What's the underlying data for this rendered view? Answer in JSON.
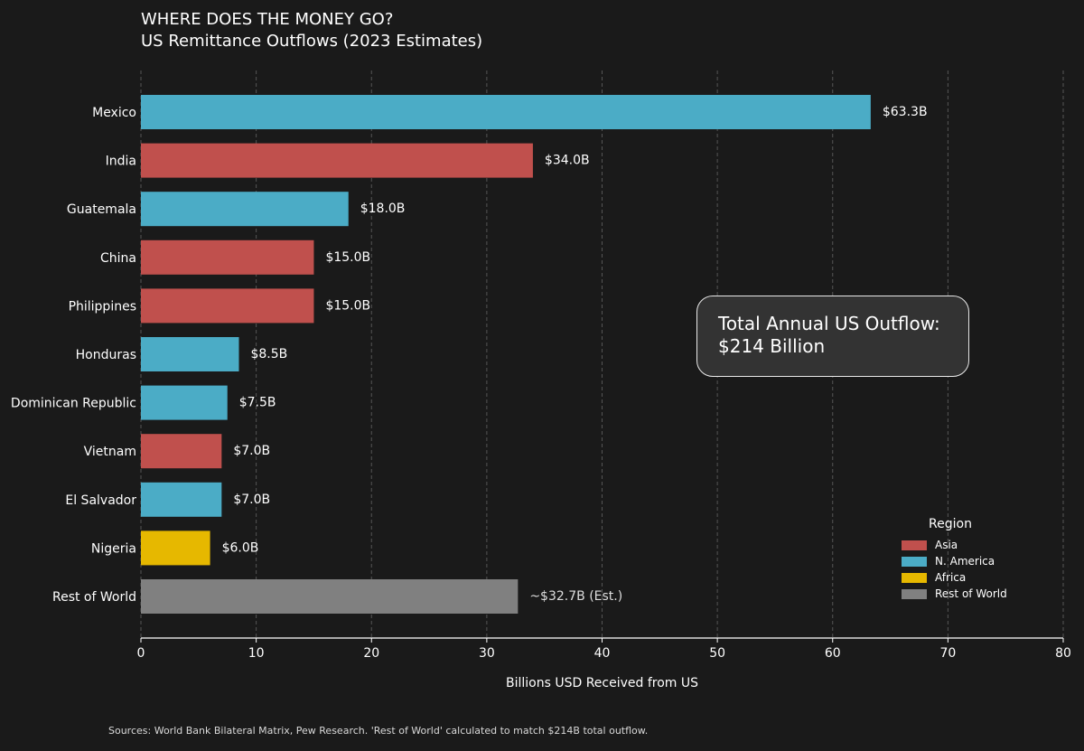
{
  "title": {
    "line1": "WHERE DOES THE MONEY GO?",
    "line2": "US Remittance Outflows (2023 Estimates)"
  },
  "annotation": {
    "line1": "Total Annual US Outflow:",
    "line2": "$214 Billion"
  },
  "source": "Sources: World Bank Bilateral Matrix, Pew Research. 'Rest of World' calculated to match $214B total outflow.",
  "colors": {
    "Asia": "#c0504d",
    "N. America": "#4bacc6",
    "Africa": "#e6b800",
    "Rest of World": "#808080",
    "background": "#1a1a1a",
    "grid": "#555555"
  },
  "legend": {
    "title": "Region",
    "items": [
      {
        "label": "Asia",
        "color": "#c0504d"
      },
      {
        "label": "N. America",
        "color": "#4bacc6"
      },
      {
        "label": "Africa",
        "color": "#e6b800"
      },
      {
        "label": "Rest of World",
        "color": "#808080"
      }
    ]
  },
  "chart_data": {
    "type": "bar",
    "orientation": "horizontal",
    "title": "US Remittance Outflows (2023 Estimates)",
    "xlabel": "Billions USD Received from US",
    "ylabel": "",
    "xlim": [
      0,
      80
    ],
    "xticks": [
      0,
      10,
      20,
      30,
      40,
      50,
      60,
      70,
      80
    ],
    "grid": "vertical dashed",
    "categories": [
      "Mexico",
      "India",
      "Guatemala",
      "China",
      "Philippines",
      "Honduras",
      "Dominican Republic",
      "Vietnam",
      "El Salvador",
      "Nigeria",
      "Rest of World"
    ],
    "values": [
      63.3,
      34.0,
      18.0,
      15.0,
      15.0,
      8.5,
      7.5,
      7.0,
      7.0,
      6.0,
      32.7
    ],
    "regions": [
      "N. America",
      "Asia",
      "N. America",
      "Asia",
      "Asia",
      "N. America",
      "N. America",
      "Asia",
      "N. America",
      "Africa",
      "Rest of World"
    ],
    "labels": [
      "$63.3B",
      "$34.0B",
      "$18.0B",
      "$15.0B",
      "$15.0B",
      "$8.5B",
      "$7.5B",
      "$7.0B",
      "$7.0B",
      "$6.0B",
      "~$32.7B (Est.)"
    ],
    "legend_position": "bottom-right"
  }
}
